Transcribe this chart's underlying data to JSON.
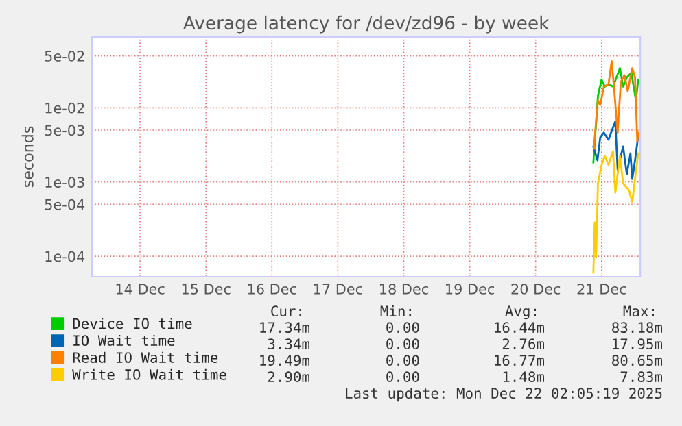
{
  "chart_data": {
    "type": "line",
    "title": "Average latency for /dev/zd96 - by week",
    "ylabel": "seconds",
    "log": "y",
    "grid": true,
    "legend": "bottom",
    "xlim": [
      "2025-12-13T18:30",
      "2025-12-22T02:05"
    ],
    "xticks": [
      {
        "value": "2025-12-14T12:00",
        "label": "14 Dec"
      },
      {
        "value": "2025-12-15T12:00",
        "label": "15 Dec"
      },
      {
        "value": "2025-12-16T12:00",
        "label": "16 Dec"
      },
      {
        "value": "2025-12-17T12:00",
        "label": "17 Dec"
      },
      {
        "value": "2025-12-18T12:00",
        "label": "18 Dec"
      },
      {
        "value": "2025-12-19T12:00",
        "label": "19 Dec"
      },
      {
        "value": "2025-12-20T12:00",
        "label": "20 Dec"
      },
      {
        "value": "2025-12-21T12:00",
        "label": "21 Dec"
      }
    ],
    "ylim": [
      5.3e-05,
      0.09
    ],
    "yticks": [
      {
        "value": 0.0001,
        "label": "1e-04"
      },
      {
        "value": 0.0005,
        "label": "5e-04"
      },
      {
        "value": 0.001,
        "label": "1e-03"
      },
      {
        "value": 0.005,
        "label": "5e-03"
      },
      {
        "value": 0.01,
        "label": "1e-02"
      },
      {
        "value": 0.05,
        "label": "5e-02"
      }
    ],
    "series": [
      {
        "name": "Device IO time",
        "color": "#00cc00",
        "x": [
          "2025-12-21T09:00",
          "2025-12-21T10:40",
          "2025-12-21T12:00",
          "2025-12-21T13:10",
          "2025-12-21T14:30",
          "2025-12-21T16:10",
          "2025-12-21T18:40",
          "2025-12-21T19:50",
          "2025-12-21T21:10",
          "2025-12-21T22:50",
          "2025-12-22T00:30",
          "2025-12-22T01:20"
        ],
        "values": [
          0.00182,
          0.0145,
          0.0239,
          0.0193,
          0.0207,
          0.0193,
          0.0342,
          0.0193,
          0.0257,
          0.0296,
          0.0126,
          0.0239
        ]
      },
      {
        "name": "IO Wait time",
        "color": "#0066b3",
        "x": [
          "2025-12-21T09:00",
          "2025-12-21T10:30",
          "2025-12-21T11:30",
          "2025-12-21T12:50",
          "2025-12-21T14:30",
          "2025-12-21T17:00",
          "2025-12-21T17:50",
          "2025-12-21T19:50",
          "2025-12-21T21:10",
          "2025-12-21T22:30",
          "2025-12-21T23:10",
          "2025-12-22T00:10",
          "2025-12-22T01:20"
        ],
        "values": [
          0.00301,
          0.00196,
          0.004,
          0.00463,
          0.00372,
          0.0066,
          0.00147,
          0.00301,
          0.00128,
          0.00243,
          0.0011,
          0.00196,
          0.0042
        ]
      },
      {
        "name": "Read IO Wait time",
        "color": "#ff8000",
        "x": [
          "2025-12-21T09:10",
          "2025-12-21T10:40",
          "2025-12-21T11:30",
          "2025-12-21T12:50",
          "2025-12-21T14:30",
          "2025-12-21T15:40",
          "2025-12-21T16:30",
          "2025-12-21T17:50",
          "2025-12-21T19:00",
          "2025-12-21T20:20",
          "2025-12-21T21:30",
          "2025-12-21T23:10",
          "2025-12-22T00:10",
          "2025-12-22T01:00",
          "2025-12-22T01:20"
        ],
        "values": [
          0.0028,
          0.0126,
          0.0109,
          0.0193,
          0.0207,
          0.0424,
          0.0193,
          0.00463,
          0.0223,
          0.0276,
          0.0167,
          0.0342,
          0.0257,
          0.00347,
          0.00463
        ]
      },
      {
        "name": "Write IO Wait time",
        "color": "#ffcc00",
        "x": [
          "2025-12-21T09:00",
          "2025-12-21T09:30",
          "2025-12-21T10:00",
          "2025-12-21T10:40",
          "2025-12-21T12:00",
          "2025-12-21T13:10",
          "2025-12-21T14:30",
          "2025-12-21T16:10",
          "2025-12-21T17:00",
          "2025-12-21T18:40",
          "2025-12-21T19:50",
          "2025-12-21T22:00",
          "2025-12-21T23:10",
          "2025-12-22T00:10",
          "2025-12-22T01:20"
        ],
        "values": [
          6e-05,
          0.000284,
          9.7e-05,
          0.00096,
          0.0017,
          0.00226,
          0.0017,
          0.0026,
          0.00072,
          0.00226,
          0.00096,
          0.00077,
          0.00054,
          0.0011,
          0.00243
        ]
      }
    ],
    "annotations": [
      "Cur:",
      "Min:",
      "Avg:",
      "Max:",
      "17.34m",
      "0.00",
      "16.44m",
      "83.18m",
      "3.34m",
      "0.00",
      "2.76m",
      "17.95m",
      "19.49m",
      "0.00",
      "16.77m",
      "80.65m",
      "2.90m",
      "0.00",
      "1.48m",
      "7.83m",
      "Last update: Mon Dec 22 02:05:19 2025"
    ]
  }
}
